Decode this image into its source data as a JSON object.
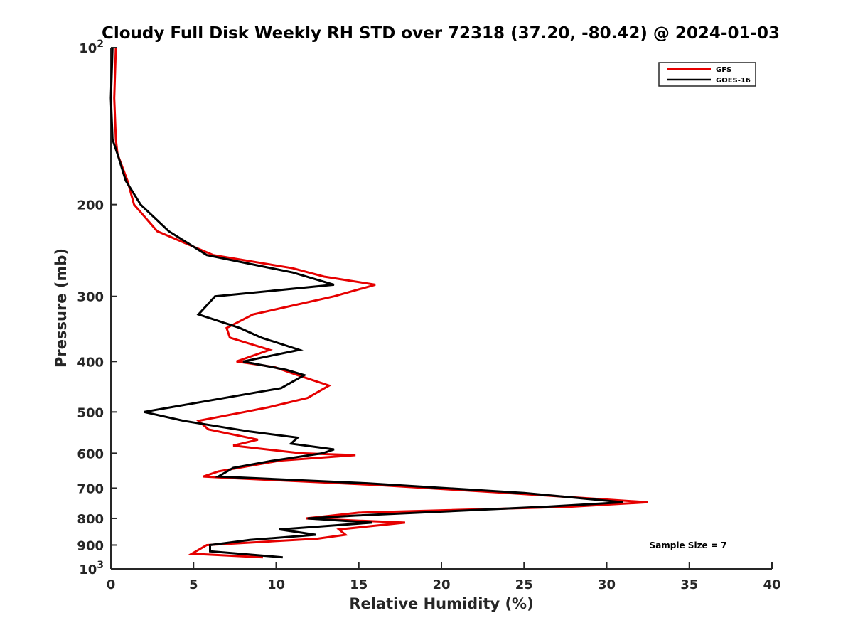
{
  "chart_data": {
    "type": "line",
    "title": "Cloudy Full Disk Weekly RH STD over 72318 (37.20, -80.42) @ 2024-01-03",
    "xlabel": "Relative Humidity (%)",
    "ylabel": "Pressure (mb)",
    "xlim": [
      0,
      40
    ],
    "ylim": [
      100,
      1000
    ],
    "yscale": "log",
    "yreversed": true,
    "xticks": [
      "0",
      "5",
      "10",
      "15",
      "20",
      "25",
      "30",
      "35",
      "40"
    ],
    "yticks": [
      {
        "value": 100,
        "label": "10",
        "exp": "2"
      },
      {
        "value": 200,
        "label": "200"
      },
      {
        "value": 300,
        "label": "300"
      },
      {
        "value": 400,
        "label": "400"
      },
      {
        "value": 500,
        "label": "500"
      },
      {
        "value": 600,
        "label": "600"
      },
      {
        "value": 700,
        "label": "700"
      },
      {
        "value": 800,
        "label": "800"
      },
      {
        "value": 900,
        "label": "900"
      },
      {
        "value": 1000,
        "label": "10",
        "exp": "3"
      }
    ],
    "legend_position": "top-right",
    "annotation": "Sample Size = 7",
    "series": [
      {
        "name": "GFS",
        "color": "#e60000",
        "points": [
          [
            0.3,
            100
          ],
          [
            0.2,
            125
          ],
          [
            0.3,
            150
          ],
          [
            0.4,
            160
          ],
          [
            1.0,
            180
          ],
          [
            1.4,
            200
          ],
          [
            2.8,
            225
          ],
          [
            6.2,
            250
          ],
          [
            11,
            265
          ],
          [
            12.9,
            275
          ],
          [
            16,
            285
          ],
          [
            13.5,
            300
          ],
          [
            8.6,
            325
          ],
          [
            7.0,
            345
          ],
          [
            7.2,
            360
          ],
          [
            9.6,
            380
          ],
          [
            7.6,
            400
          ],
          [
            9.9,
            410
          ],
          [
            11.3,
            425
          ],
          [
            13.2,
            445
          ],
          [
            11.9,
            470
          ],
          [
            9.5,
            490
          ],
          [
            8.1,
            500
          ],
          [
            5.3,
            520
          ],
          [
            5.9,
            540
          ],
          [
            8.9,
            565
          ],
          [
            7.4,
            580
          ],
          [
            11.5,
            600
          ],
          [
            14.8,
            605
          ],
          [
            10.2,
            620
          ],
          [
            6.5,
            650
          ],
          [
            5.6,
            665
          ],
          [
            7.5,
            670
          ],
          [
            16.0,
            690
          ],
          [
            24.0,
            715
          ],
          [
            32.5,
            745
          ],
          [
            27.8,
            760
          ],
          [
            15.0,
            780
          ],
          [
            11.8,
            800
          ],
          [
            17.8,
            815
          ],
          [
            13.8,
            840
          ],
          [
            14.2,
            860
          ],
          [
            12.5,
            875
          ],
          [
            5.8,
            900
          ],
          [
            4.9,
            935
          ],
          [
            9.2,
            950
          ]
        ]
      },
      {
        "name": "GOES-16",
        "color": "#000000",
        "points": [
          [
            0.1,
            100
          ],
          [
            0.0,
            125
          ],
          [
            0.1,
            150
          ],
          [
            0.4,
            160
          ],
          [
            0.9,
            180
          ],
          [
            1.8,
            200
          ],
          [
            3.5,
            225
          ],
          [
            5.8,
            250
          ],
          [
            11,
            270
          ],
          [
            13.5,
            285
          ],
          [
            6.3,
            300
          ],
          [
            5.3,
            325
          ],
          [
            7.8,
            345
          ],
          [
            9.1,
            360
          ],
          [
            11.4,
            380
          ],
          [
            8,
            400
          ],
          [
            10.6,
            415
          ],
          [
            11.7,
            425
          ],
          [
            10.3,
            450
          ],
          [
            2.0,
            500
          ],
          [
            4.4,
            520
          ],
          [
            8.4,
            545
          ],
          [
            11.3,
            560
          ],
          [
            10.9,
            575
          ],
          [
            13.5,
            590
          ],
          [
            12.8,
            600
          ],
          [
            9.8,
            620
          ],
          [
            7.4,
            640
          ],
          [
            6.5,
            665
          ],
          [
            15.5,
            685
          ],
          [
            25,
            715
          ],
          [
            31,
            745
          ],
          [
            26.3,
            760
          ],
          [
            14.8,
            790
          ],
          [
            11.9,
            800
          ],
          [
            15.8,
            815
          ],
          [
            10.2,
            840
          ],
          [
            12.4,
            860
          ],
          [
            8.4,
            880
          ],
          [
            6.0,
            900
          ],
          [
            6.0,
            925
          ],
          [
            10.4,
            950
          ]
        ]
      }
    ]
  }
}
